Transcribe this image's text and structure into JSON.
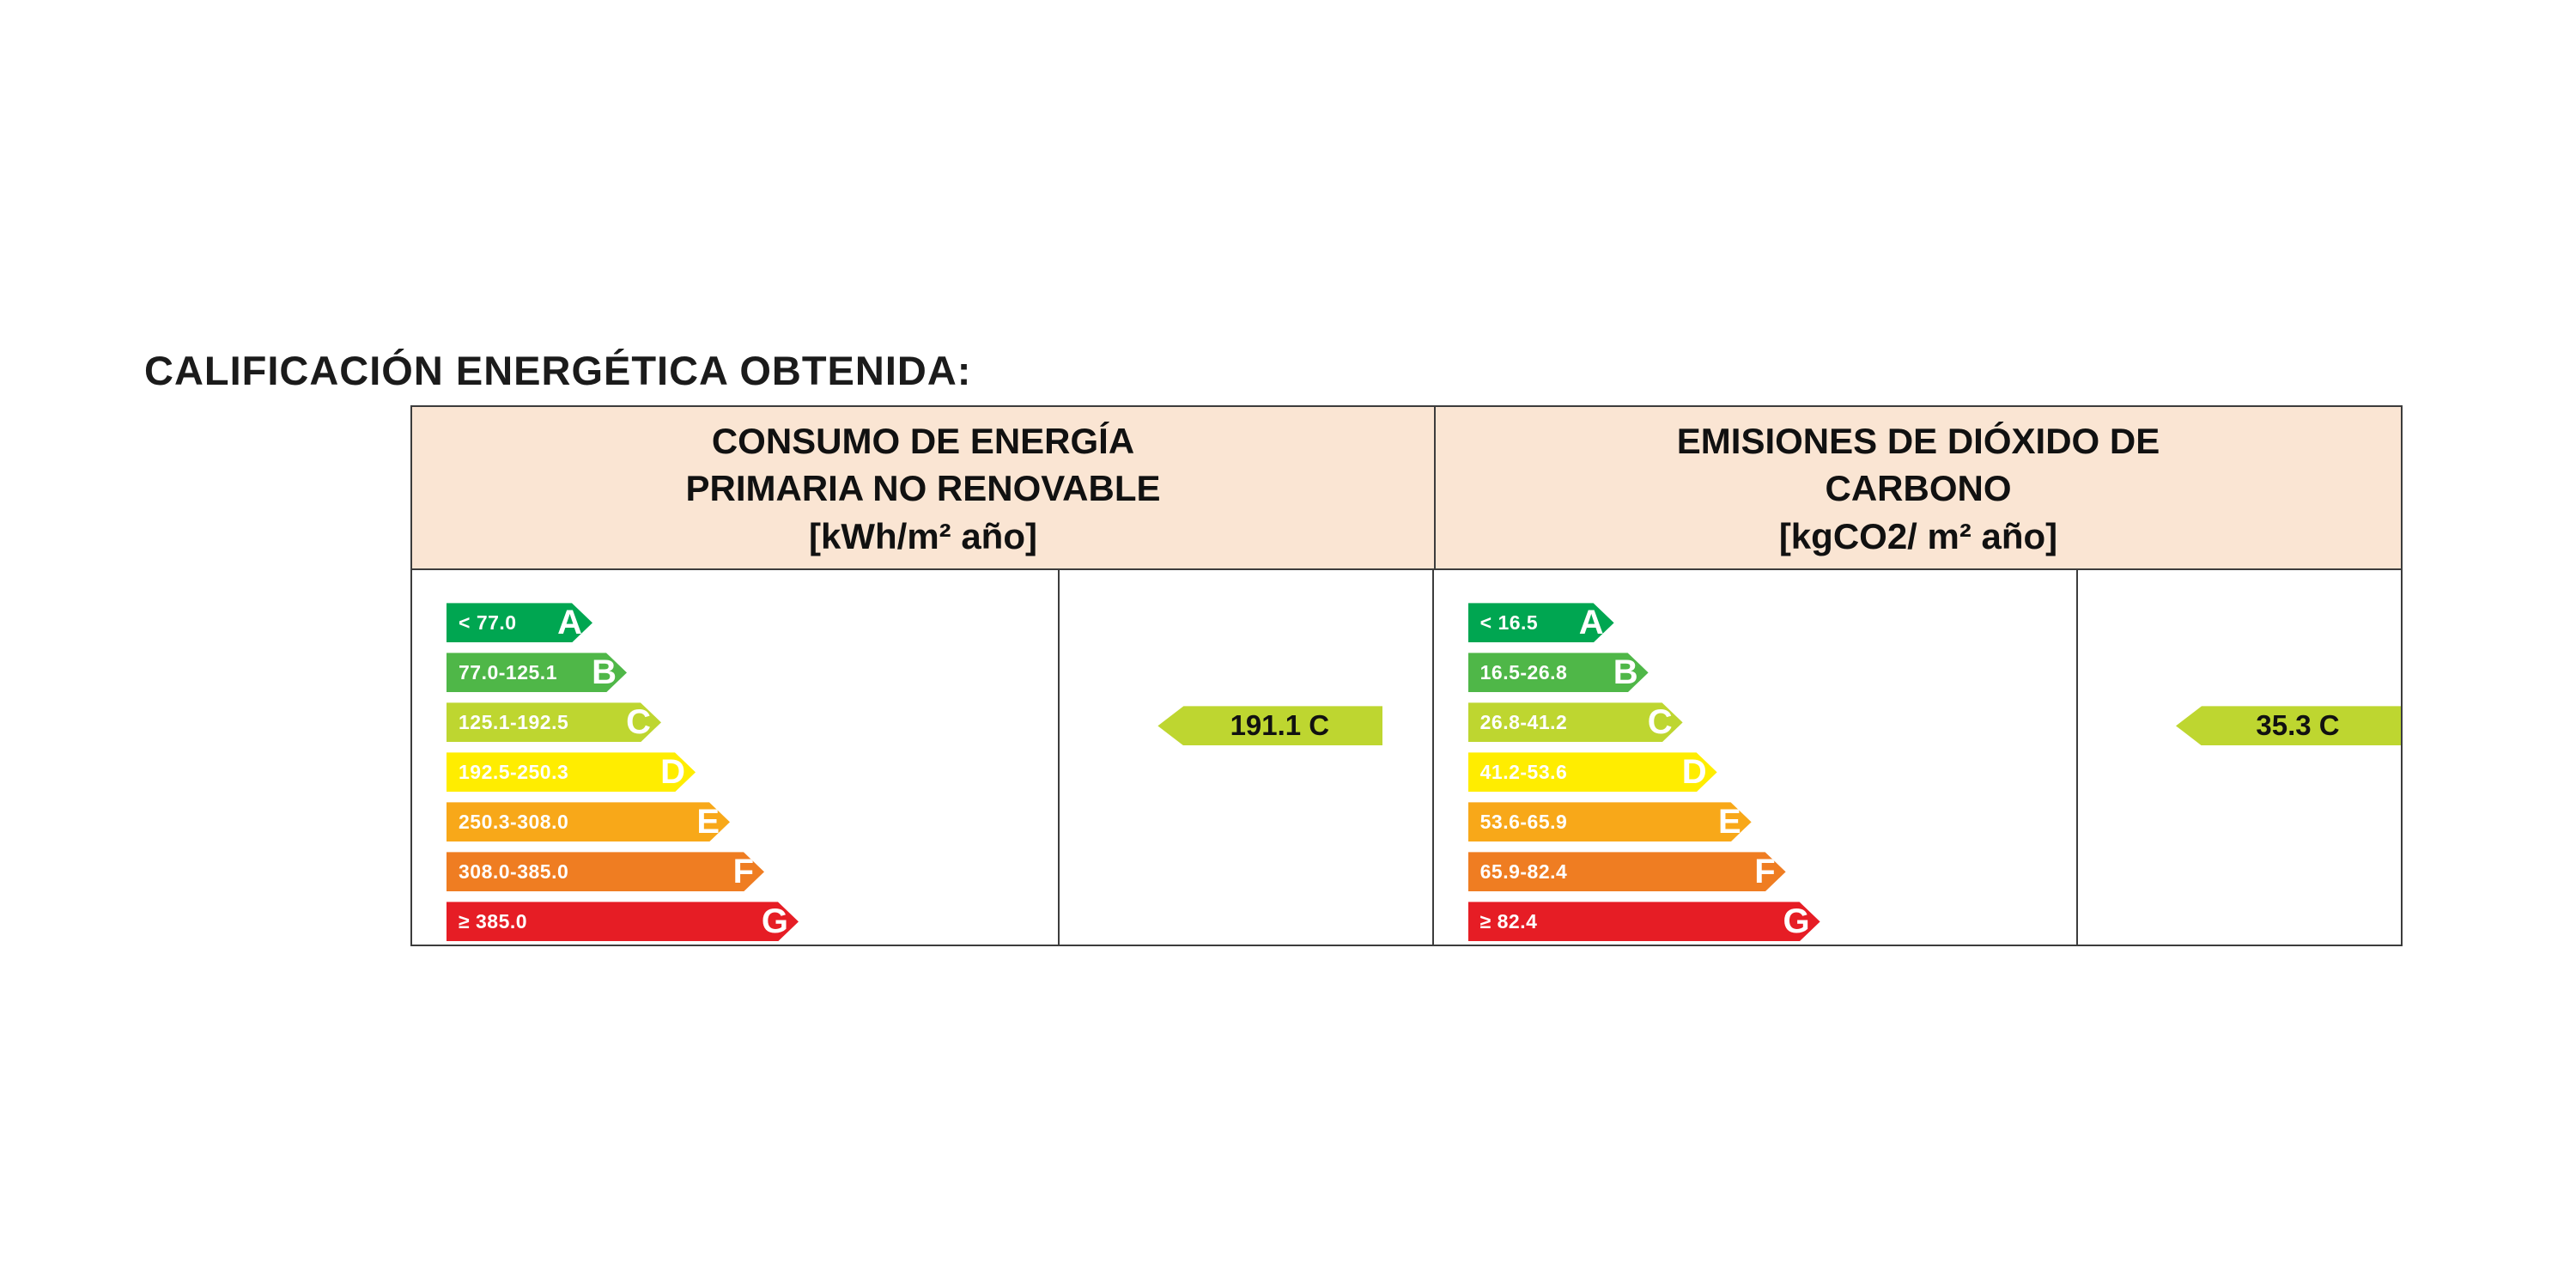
{
  "title": "CALIFICACIÓN ENERGÉTICA OBTENIDA:",
  "table": {
    "header_background": "#fae5d3",
    "border_color": "#3c3c3c"
  },
  "chart_data": [
    {
      "type": "bar",
      "title_lines": [
        "CONSUMO DE ENERGÍA",
        "PRIMARIA NO RENOVABLE",
        "[kWh/m² año]"
      ],
      "unit": "kWh/m² año",
      "categories": [
        "A",
        "B",
        "C",
        "D",
        "E",
        "F",
        "G"
      ],
      "band_ranges": [
        "< 77.0",
        "77.0-125.1",
        "125.1-192.5",
        "192.5-250.3",
        "250.3-308.0",
        "308.0-385.0",
        "≥ 385.0"
      ],
      "band_colors": [
        "#00a651",
        "#4fb748",
        "#bed630",
        "#ffed00",
        "#f8a819",
        "#ef7d22",
        "#e61d25"
      ],
      "value": 191.1,
      "value_letter": "C",
      "value_label": "191.1 C",
      "value_color": "#bed630"
    },
    {
      "type": "bar",
      "title_lines": [
        "EMISIONES DE DIÓXIDO DE",
        "CARBONO",
        "[kgCO2/ m² año]"
      ],
      "unit": "kgCO2/ m² año",
      "categories": [
        "A",
        "B",
        "C",
        "D",
        "E",
        "F",
        "G"
      ],
      "band_ranges": [
        "< 16.5",
        "16.5-26.8",
        "26.8-41.2",
        "41.2-53.6",
        "53.6-65.9",
        "65.9-82.4",
        "≥ 82.4"
      ],
      "band_colors": [
        "#00a651",
        "#4fb748",
        "#bed630",
        "#ffed00",
        "#f8a819",
        "#ef7d22",
        "#e61d25"
      ],
      "value": 35.3,
      "value_letter": "C",
      "value_label": "35.3 C",
      "value_color": "#bed630"
    }
  ]
}
